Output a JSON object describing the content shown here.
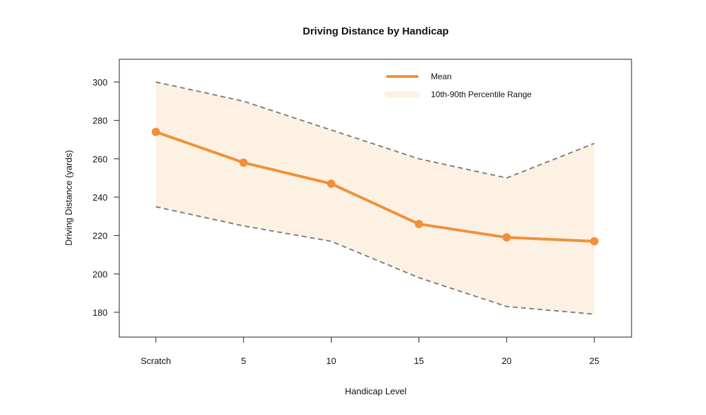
{
  "chart_data": {
    "type": "line",
    "title": "Driving Distance by Handicap",
    "xlabel": "Handicap Level",
    "ylabel": "Driving Distance (yards)",
    "categories": [
      "Scratch",
      "5",
      "10",
      "15",
      "20",
      "25"
    ],
    "yticks": [
      180,
      200,
      220,
      240,
      260,
      280,
      300
    ],
    "ylim": [
      168,
      312
    ],
    "grid": false,
    "legend_position": "top-right",
    "series": [
      {
        "name": "Mean",
        "values": [
          274,
          258,
          247,
          226,
          219,
          217
        ],
        "color": "#F0913A"
      },
      {
        "name": "10th-90th Percentile Range",
        "lower": [
          235,
          225,
          217,
          198,
          183,
          179
        ],
        "upper": [
          300,
          290,
          275,
          260,
          250,
          268
        ],
        "color": "#FDF1E4",
        "bound_line_color": "#808080"
      }
    ]
  }
}
